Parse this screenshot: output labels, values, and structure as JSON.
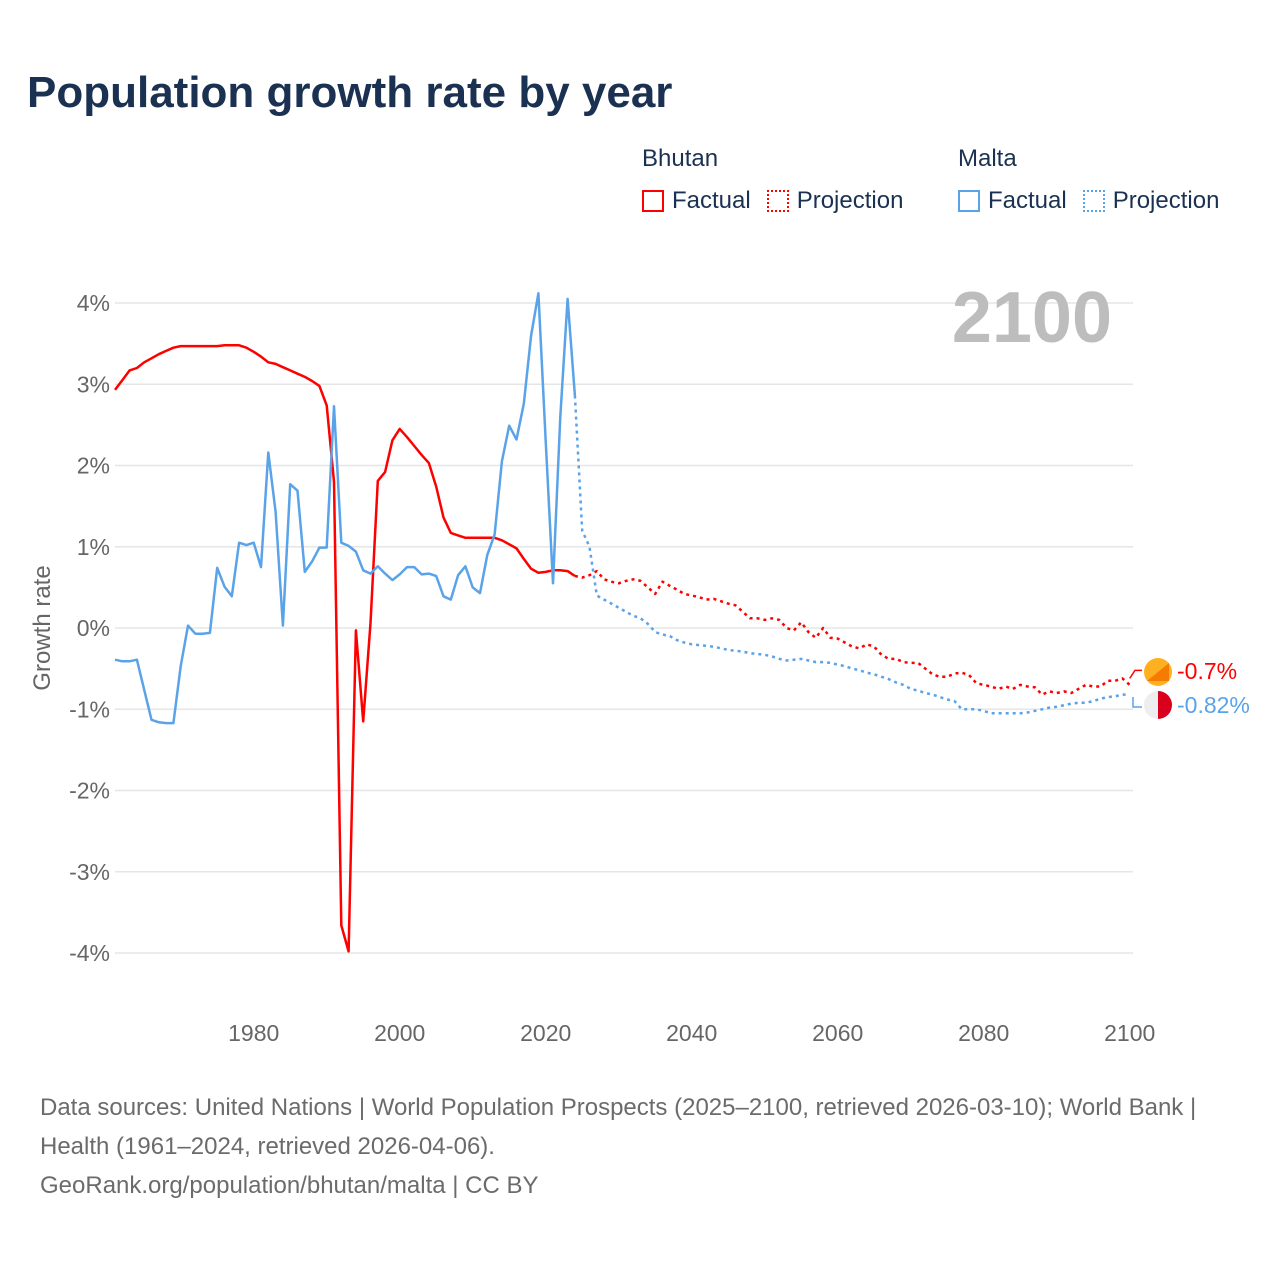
{
  "title": "Population growth rate by year",
  "legend": {
    "groups": [
      {
        "name": "Bhutan",
        "color": "#ff0000",
        "factual": "Factual",
        "projection": "Projection"
      },
      {
        "name": "Malta",
        "color": "#5aa3e8",
        "factual": "Factual",
        "projection": "Projection"
      }
    ]
  },
  "year_display": "2100",
  "end_labels": {
    "bhutan": "-0.7%",
    "malta": "-0.82%"
  },
  "source": {
    "line1": "Data sources: United Nations | World Population Prospects (2025–2100, retrieved 2026-03-10); World Bank | Health (1961–2024, retrieved 2026-04-06).",
    "line2": "GeoRank.org/population/bhutan/malta | CC BY"
  },
  "chart_data": {
    "type": "line",
    "title": "Population growth rate by year",
    "xlabel": "",
    "ylabel": "Growth rate",
    "xlim": [
      1961,
      2100
    ],
    "ylim": [
      -4.6,
      4.6
    ],
    "x_ticks": [
      1980,
      2000,
      2020,
      2040,
      2060,
      2080,
      2100
    ],
    "y_ticks": [
      {
        "value": 4,
        "label": "4%"
      },
      {
        "value": 3,
        "label": "3%"
      },
      {
        "value": 2,
        "label": "2%"
      },
      {
        "value": 1,
        "label": "1%"
      },
      {
        "value": 0,
        "label": "0%"
      },
      {
        "value": -1,
        "label": "-1%"
      },
      {
        "value": -2,
        "label": "-2%"
      },
      {
        "value": -3,
        "label": "-3%"
      },
      {
        "value": -4,
        "label": "-4%"
      }
    ],
    "grid": true,
    "legend_position": "top-right",
    "series": [
      {
        "name": "Bhutan Factual",
        "color": "#ff0000",
        "style": "solid",
        "start_year": 1961,
        "values": [
          2.93,
          3.05,
          3.17,
          3.2,
          3.27,
          3.32,
          3.37,
          3.41,
          3.45,
          3.47,
          3.47,
          3.47,
          3.47,
          3.47,
          3.47,
          3.48,
          3.48,
          3.48,
          3.45,
          3.4,
          3.34,
          3.27,
          3.25,
          3.21,
          3.17,
          3.13,
          3.09,
          3.04,
          2.98,
          2.74,
          1.8,
          -3.66,
          -3.98,
          -0.03,
          -1.15,
          0.06,
          1.81,
          1.92,
          2.31,
          2.45,
          2.35,
          2.24,
          2.13,
          2.03,
          1.74,
          1.36,
          1.17,
          1.14,
          1.11,
          1.11,
          1.11,
          1.11,
          1.11,
          1.08,
          1.03,
          0.98,
          0.85,
          0.73,
          0.68,
          0.69,
          0.71,
          0.71,
          0.7,
          0.64
        ]
      },
      {
        "name": "Bhutan Projection",
        "color": "#ff0000",
        "style": "dotted",
        "start_year": 2024,
        "values": [
          0.64,
          0.62,
          0.65,
          0.7,
          0.6,
          0.57,
          0.55,
          0.58,
          0.6,
          0.58,
          0.5,
          0.42,
          0.57,
          0.52,
          0.47,
          0.42,
          0.4,
          0.38,
          0.35,
          0.36,
          0.33,
          0.3,
          0.28,
          0.2,
          0.12,
          0.12,
          0.1,
          0.12,
          0.1,
          0.0,
          -0.03,
          0.07,
          -0.05,
          -0.12,
          0.0,
          -0.12,
          -0.13,
          -0.18,
          -0.23,
          -0.25,
          -0.2,
          -0.23,
          -0.33,
          -0.38,
          -0.38,
          -0.42,
          -0.43,
          -0.43,
          -0.5,
          -0.57,
          -0.6,
          -0.6,
          -0.56,
          -0.55,
          -0.58,
          -0.68,
          -0.7,
          -0.72,
          -0.75,
          -0.72,
          -0.75,
          -0.7,
          -0.72,
          -0.73,
          -0.82,
          -0.78,
          -0.8,
          -0.78,
          -0.8,
          -0.75,
          -0.7,
          -0.72,
          -0.72,
          -0.65,
          -0.65,
          -0.62,
          -0.7
        ]
      },
      {
        "name": "Malta Factual",
        "color": "#5aa3e8",
        "style": "solid",
        "start_year": 1961,
        "values": [
          -0.39,
          -0.41,
          -0.41,
          -0.39,
          -0.76,
          -1.13,
          -1.16,
          -1.17,
          -1.17,
          -0.47,
          0.03,
          -0.07,
          -0.07,
          -0.06,
          0.74,
          0.51,
          0.39,
          1.05,
          1.02,
          1.05,
          0.75,
          2.16,
          1.43,
          0.03,
          1.77,
          1.69,
          0.69,
          0.82,
          0.99,
          0.99,
          2.73,
          1.05,
          1.01,
          0.94,
          0.71,
          0.67,
          0.76,
          0.67,
          0.59,
          0.66,
          0.75,
          0.75,
          0.66,
          0.67,
          0.64,
          0.39,
          0.35,
          0.65,
          0.76,
          0.5,
          0.43,
          0.9,
          1.15,
          2.05,
          2.49,
          2.32,
          2.76,
          3.6,
          4.12,
          2.3,
          0.55,
          2.6,
          4.05,
          2.86
        ]
      },
      {
        "name": "Malta Projection",
        "color": "#5aa3e8",
        "style": "dotted",
        "start_year": 2024,
        "values": [
          2.86,
          1.2,
          1.0,
          0.4,
          0.35,
          0.3,
          0.25,
          0.2,
          0.15,
          0.12,
          0.05,
          -0.05,
          -0.08,
          -0.1,
          -0.15,
          -0.18,
          -0.2,
          -0.21,
          -0.22,
          -0.23,
          -0.25,
          -0.27,
          -0.28,
          -0.29,
          -0.31,
          -0.32,
          -0.33,
          -0.35,
          -0.38,
          -0.4,
          -0.39,
          -0.38,
          -0.4,
          -0.42,
          -0.42,
          -0.43,
          -0.45,
          -0.47,
          -0.5,
          -0.52,
          -0.55,
          -0.57,
          -0.6,
          -0.63,
          -0.67,
          -0.7,
          -0.75,
          -0.77,
          -0.8,
          -0.82,
          -0.85,
          -0.88,
          -0.9,
          -1.0,
          -1.0,
          -1.0,
          -1.02,
          -1.05,
          -1.05,
          -1.05,
          -1.05,
          -1.05,
          -1.04,
          -1.02,
          -1.0,
          -0.98,
          -0.97,
          -0.95,
          -0.93,
          -0.92,
          -0.92,
          -0.9,
          -0.87,
          -0.85,
          -0.84,
          -0.82,
          -0.82
        ]
      }
    ]
  }
}
